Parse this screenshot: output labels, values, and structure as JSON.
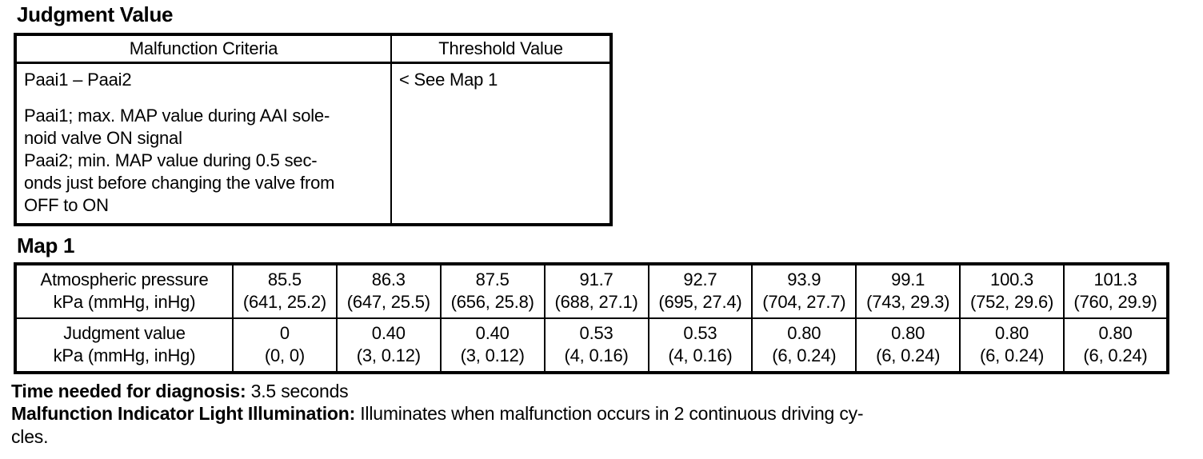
{
  "headings": {
    "judgment_value": "Judgment Value",
    "map1": "Map 1"
  },
  "judgment_table": {
    "headers": {
      "criteria": "Malfunction Criteria",
      "threshold": "Threshold Value"
    },
    "row": {
      "criteria_title": "Paai1 – Paai2",
      "criteria_detail_lines": [
        "Paai1; max. MAP value during AAI sole-",
        "noid valve ON signal",
        "Paai2; min. MAP value during 0.5 sec-",
        "onds just before changing the valve from",
        "OFF to ON"
      ],
      "threshold_value": "< See Map 1"
    }
  },
  "map1_table": {
    "row_labels": {
      "pressure": [
        "Atmospheric pressure",
        "kPa (mmHg, inHg)"
      ],
      "judgment": [
        "Judgment value",
        "kPa (mmHg, inHg)"
      ]
    },
    "columns": [
      {
        "pressure": [
          "85.5",
          "(641, 25.2)"
        ],
        "judgment": [
          "0",
          "(0, 0)"
        ]
      },
      {
        "pressure": [
          "86.3",
          "(647, 25.5)"
        ],
        "judgment": [
          "0.40",
          "(3, 0.12)"
        ]
      },
      {
        "pressure": [
          "87.5",
          "(656, 25.8)"
        ],
        "judgment": [
          "0.40",
          "(3, 0.12)"
        ]
      },
      {
        "pressure": [
          "91.7",
          "(688, 27.1)"
        ],
        "judgment": [
          "0.53",
          "(4, 0.16)"
        ]
      },
      {
        "pressure": [
          "92.7",
          "(695, 27.4)"
        ],
        "judgment": [
          "0.53",
          "(4, 0.16)"
        ]
      },
      {
        "pressure": [
          "93.9",
          "(704, 27.7)"
        ],
        "judgment": [
          "0.80",
          "(6, 0.24)"
        ]
      },
      {
        "pressure": [
          "99.1",
          "(743, 29.3)"
        ],
        "judgment": [
          "0.80",
          "(6, 0.24)"
        ]
      },
      {
        "pressure": [
          "100.3",
          "(752, 29.6)"
        ],
        "judgment": [
          "0.80",
          "(6, 0.24)"
        ]
      },
      {
        "pressure": [
          "101.3",
          "(760, 29.9)"
        ],
        "judgment": [
          "0.80",
          "(6, 0.24)"
        ]
      }
    ]
  },
  "footer": {
    "time_label": "Time needed for diagnosis:",
    "time_value": " 3.5 seconds",
    "mil_label": "Malfunction Indicator Light Illumination:",
    "mil_value_line1": " Illuminates when malfunction occurs in 2 continuous driving cy-",
    "mil_value_line2": "cles."
  }
}
